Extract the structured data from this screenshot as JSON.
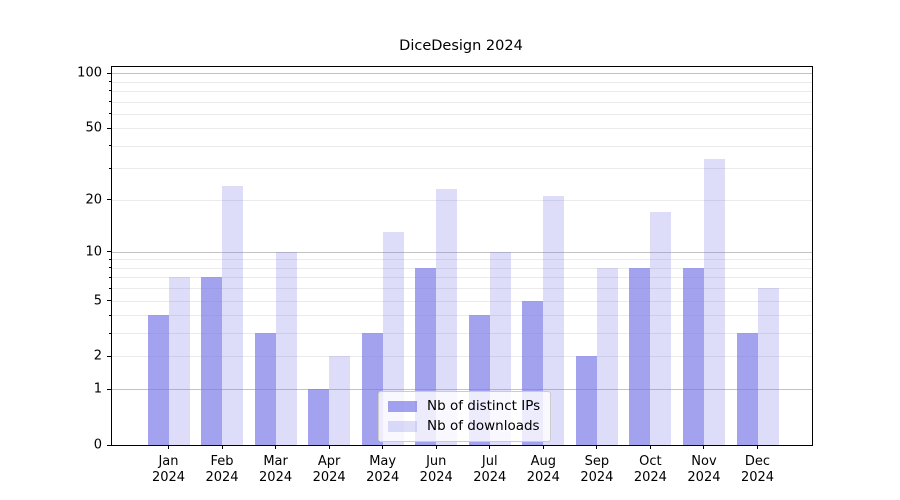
{
  "chart_data": {
    "type": "bar",
    "title": "DiceDesign 2024",
    "xlabel": "",
    "ylabel": "",
    "year_label": "2024",
    "categories": [
      "Jan",
      "Feb",
      "Mar",
      "Apr",
      "May",
      "Jun",
      "Jul",
      "Aug",
      "Sep",
      "Oct",
      "Nov",
      "Dec"
    ],
    "series": [
      {
        "name": "Nb of distinct IPs",
        "values": [
          4,
          7,
          3,
          1,
          3,
          8,
          4,
          5,
          2,
          8,
          8,
          3
        ],
        "color": "rgba(120,120,232,0.69)"
      },
      {
        "name": "Nb of downloads",
        "values": [
          7,
          24,
          10,
          2,
          13,
          23,
          10,
          21,
          8,
          17,
          34,
          6
        ],
        "color": "rgba(120,120,232,0.25)"
      }
    ],
    "yscale": "log1p",
    "ylim": [
      0,
      108
    ],
    "yticks_labeled": [
      0,
      1,
      2,
      5,
      10,
      20,
      50,
      100
    ],
    "grid_major_values": [
      1,
      10,
      100
    ],
    "grid_minor_values": [
      2,
      3,
      4,
      5,
      6,
      7,
      8,
      9,
      20,
      30,
      40,
      50,
      60,
      70,
      80,
      90
    ],
    "grid": {
      "major_color": "#c3c3c3",
      "minor_color": "#eaeaea"
    },
    "legend_position": "lower center",
    "axis_color": "#000000",
    "background_color": "#ffffff"
  }
}
